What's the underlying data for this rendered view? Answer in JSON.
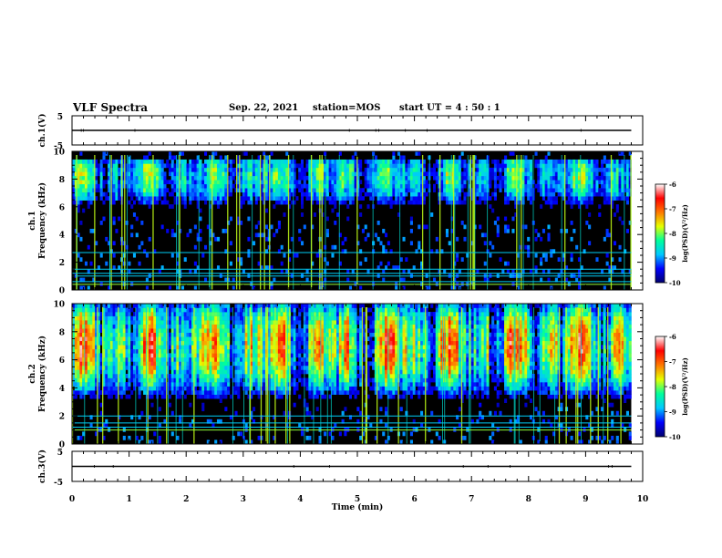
{
  "header": {
    "title": "VLF Spectra",
    "date": "Sep. 22, 2021",
    "station": "station=MOS",
    "start": "start UT =  4 : 50 : 1"
  },
  "chart_data": [
    {
      "id": "ch1v",
      "type": "line",
      "ylabel": "ch.1(V)",
      "ylim": [
        -5,
        5
      ],
      "yticks": [
        "5",
        "-5"
      ],
      "xlim": [
        0,
        10
      ],
      "series": [
        {
          "x": [
            0,
            9.8
          ],
          "values": [
            0,
            0
          ]
        }
      ]
    },
    {
      "id": "spec1",
      "type": "heatmap",
      "ylabel": "ch.1\nFrequency (kHz)",
      "ylim": [
        0,
        10
      ],
      "yticks": [
        "0",
        "2",
        "4",
        "6",
        "8",
        "10"
      ],
      "xlim": [
        0,
        10
      ],
      "data_xlim": [
        0,
        9.8
      ],
      "band_khz": [
        5.5,
        9.5
      ],
      "band_peak_khz": 8.2,
      "max_level": 0.55,
      "lines_khz": [
        0.4,
        0.6,
        1.0,
        1.2,
        1.5,
        2.7
      ],
      "colorbar": {
        "label": "log(PSD)(V²/Hz)",
        "ticks": [
          "-6",
          "-7",
          "-8",
          "-9",
          "-10"
        ],
        "range": [
          -10,
          -6
        ]
      }
    },
    {
      "id": "spec2",
      "type": "heatmap",
      "ylabel": "ch.2\nFrequency (kHz)",
      "ylim": [
        0,
        10
      ],
      "yticks": [
        "0",
        "2",
        "4",
        "6",
        "8",
        "10"
      ],
      "xlim": [
        0,
        10
      ],
      "data_xlim": [
        0,
        9.8
      ],
      "band_khz": [
        3.0,
        10.0
      ],
      "band_peak_khz": 7.0,
      "max_level": 0.9,
      "lines_khz": [
        1.0,
        1.2,
        1.5,
        2.0
      ],
      "colorbar": {
        "label": "log(PSD)(V²/Hz)",
        "ticks": [
          "-6",
          "-7",
          "-8",
          "-9",
          "-10"
        ],
        "range": [
          -10,
          -6
        ]
      }
    },
    {
      "id": "ch3v",
      "type": "line",
      "ylabel": "ch.3(V)",
      "ylim": [
        -5,
        5
      ],
      "yticks": [
        "5",
        "-5"
      ],
      "xlim": [
        0,
        10
      ],
      "series": [
        {
          "x": [
            0,
            9.8
          ],
          "values": [
            0,
            0
          ]
        }
      ]
    }
  ],
  "xaxis": {
    "label": "Time (min)",
    "ticks": [
      "0",
      "1",
      "2",
      "3",
      "4",
      "5",
      "6",
      "7",
      "8",
      "9",
      "10"
    ]
  },
  "colors": {
    "background": "#000000",
    "colormap": [
      "#00006e",
      "#0000ff",
      "#00c8ff",
      "#00ff9b",
      "#e6ff00",
      "#ff7800",
      "#ff0000",
      "#ffffff"
    ]
  }
}
